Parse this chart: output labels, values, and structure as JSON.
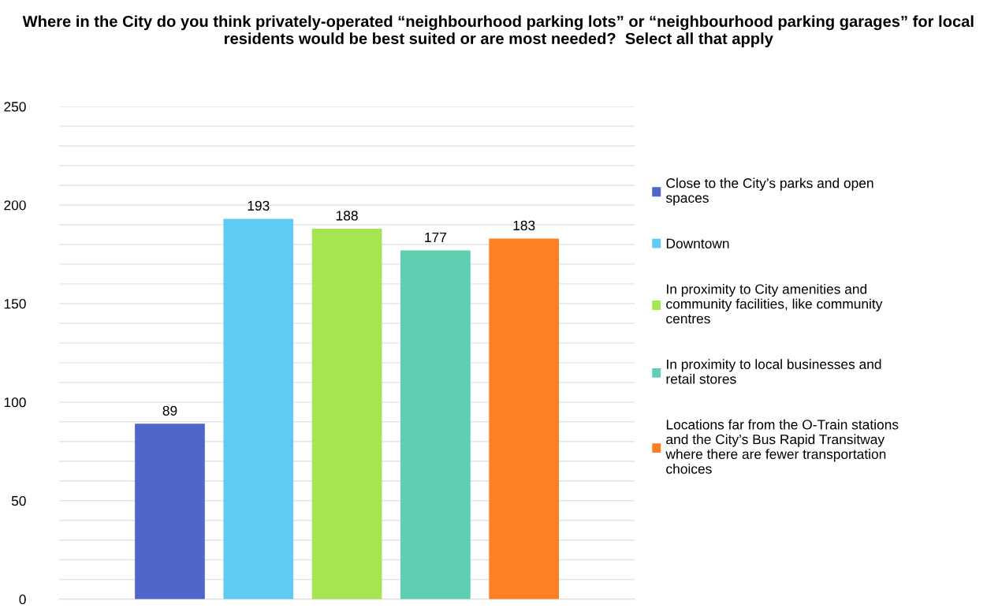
{
  "chart_data": {
    "type": "bar",
    "title": "Where in the City do you think privately-operated “neighbourhood parking lots” or “neighbourhood parking garages” for local residents would be best suited or are most needed?  Select all that apply",
    "categories": [
      null
    ],
    "series": [
      {
        "name": "Close to the City’s parks and open spaces",
        "color": "#5066c8",
        "values": [
          89
        ]
      },
      {
        "name": "Downtown",
        "color": "#5fcbf2",
        "values": [
          193
        ]
      },
      {
        "name": "In proximity to City amenities and community facilities, like community centres",
        "color": "#a6e552",
        "values": [
          188
        ]
      },
      {
        "name": "In proximity to local businesses and retail stores",
        "color": "#5ecfb2",
        "values": [
          177
        ]
      },
      {
        "name": "Locations far from the O-Train stations and the City’s Bus Rapid Transitway where there are fewer transportation choices",
        "color": "#fd8023",
        "values": [
          183
        ]
      }
    ],
    "ylim": [
      0,
      250
    ],
    "yticks": [
      0,
      {
        "value": 10,
        "label": null
      },
      {
        "value": 20,
        "label": null
      },
      {
        "value": 30,
        "label": null
      },
      {
        "value": 40,
        "label": null
      },
      50,
      {
        "value": 60,
        "label": null
      },
      {
        "value": 70,
        "label": null
      },
      {
        "value": 80,
        "label": null
      },
      {
        "value": 90,
        "label": null
      },
      100,
      {
        "value": 110,
        "label": null
      },
      {
        "value": 120,
        "label": null
      },
      {
        "value": 130,
        "label": null
      },
      {
        "value": 140,
        "label": null
      },
      150,
      {
        "value": 160,
        "label": null
      },
      {
        "value": 170,
        "label": null
      },
      {
        "value": 180,
        "label": null
      },
      {
        "value": 190,
        "label": null
      },
      200,
      {
        "value": 210,
        "label": null
      },
      {
        "value": 220,
        "label": null
      },
      {
        "value": 230,
        "label": null
      },
      {
        "value": 240,
        "label": null
      },
      250
    ],
    "grid": "y",
    "legend": "right",
    "data_labels": true,
    "tick_labels": "y"
  }
}
